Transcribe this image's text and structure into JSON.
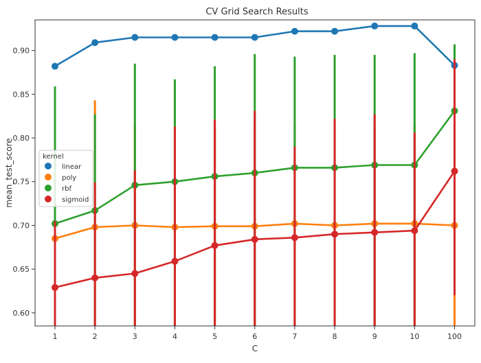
{
  "chart_data": {
    "type": "line",
    "title": "CV Grid Search Results",
    "xlabel": "C",
    "ylabel": "mean_test_score",
    "categories": [
      "1",
      "2",
      "3",
      "4",
      "5",
      "6",
      "7",
      "8",
      "9",
      "10",
      "100"
    ],
    "ylim": [
      0.585,
      0.935
    ],
    "yticks": [
      0.6,
      0.65,
      0.7,
      0.75,
      0.8,
      0.85,
      0.9
    ],
    "ytick_labels": [
      "0.60",
      "0.65",
      "0.70",
      "0.75",
      "0.80",
      "0.85",
      "0.90"
    ],
    "grid": false,
    "legend": {
      "title": "kernel",
      "placement": "center-left"
    },
    "series": [
      {
        "name": "linear",
        "color": "#1f77b4",
        "values": [
          0.882,
          0.909,
          0.915,
          0.915,
          0.915,
          0.915,
          0.922,
          0.922,
          0.928,
          0.928,
          0.883
        ],
        "err_low": [
          null,
          null,
          null,
          null,
          null,
          null,
          null,
          null,
          null,
          null,
          null
        ],
        "err_high": [
          null,
          null,
          null,
          null,
          null,
          null,
          null,
          null,
          null,
          null,
          null
        ]
      },
      {
        "name": "poly",
        "color": "#ff7f0e",
        "values": [
          0.685,
          0.698,
          0.7,
          0.698,
          0.699,
          0.699,
          0.702,
          0.7,
          0.702,
          0.702,
          0.7
        ],
        "err_low": [
          0.585,
          0.585,
          0.585,
          0.585,
          0.585,
          0.585,
          0.585,
          0.585,
          0.585,
          0.585,
          0.585
        ],
        "err_high": [
          0.785,
          0.843,
          0.815,
          0.81,
          0.812,
          0.813,
          0.815,
          0.815,
          0.815,
          0.815,
          0.815
        ]
      },
      {
        "name": "rbf",
        "color": "#2ca02c",
        "values": [
          0.702,
          0.717,
          0.746,
          0.75,
          0.756,
          0.76,
          0.766,
          0.766,
          0.769,
          0.769,
          0.831
        ],
        "err_low": [
          0.585,
          0.585,
          0.585,
          0.585,
          0.585,
          0.585,
          0.585,
          0.585,
          0.585,
          0.585,
          0.755
        ],
        "err_high": [
          0.859,
          0.827,
          0.885,
          0.867,
          0.882,
          0.896,
          0.893,
          0.895,
          0.895,
          0.897,
          0.907
        ]
      },
      {
        "name": "sigmoid",
        "color": "#d62728",
        "values": [
          0.629,
          0.64,
          0.645,
          0.659,
          0.677,
          0.684,
          0.686,
          0.69,
          0.692,
          0.694,
          0.762
        ],
        "err_low": [
          0.585,
          0.585,
          0.585,
          0.585,
          0.585,
          0.585,
          0.585,
          0.585,
          0.585,
          0.585,
          0.62
        ],
        "err_high": [
          0.705,
          0.749,
          0.763,
          0.813,
          0.821,
          0.831,
          0.79,
          0.822,
          0.827,
          0.806,
          0.89
        ]
      }
    ]
  }
}
